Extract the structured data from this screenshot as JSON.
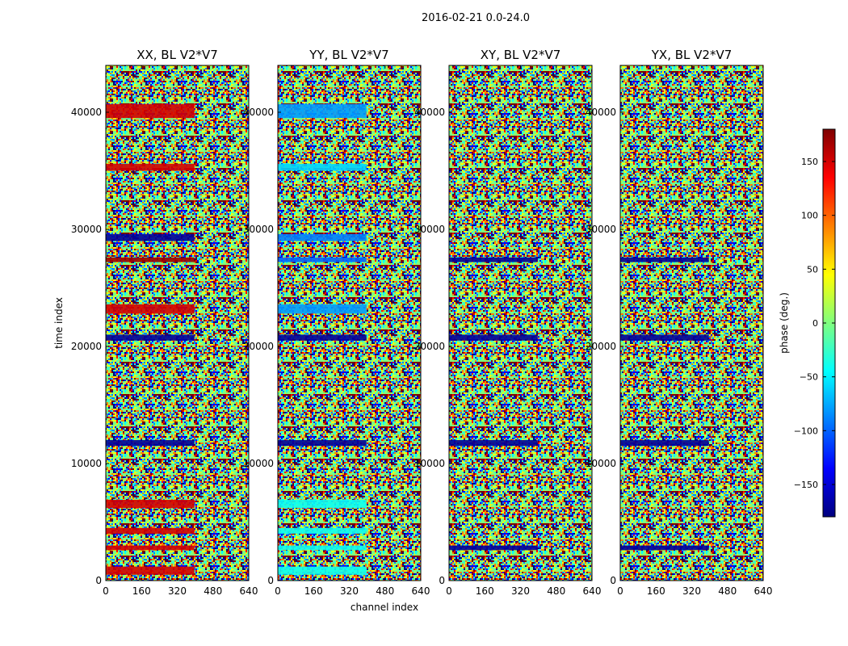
{
  "suptitle": "2016-02-21 0.0-24.0",
  "chart_data": {
    "type": "heatmap",
    "xlabel": "channel index",
    "ylabel": "time index",
    "xlim": [
      0,
      640
    ],
    "ylim": [
      0,
      44000
    ],
    "xticks": [
      0,
      160,
      320,
      480,
      640
    ],
    "yticks": [
      0,
      10000,
      20000,
      30000,
      40000
    ],
    "colorbar": {
      "label": "phase (deg.)",
      "range": [
        -180,
        180
      ],
      "ticks": [
        150,
        100,
        50,
        0,
        -50,
        -100,
        -150
      ],
      "tick_labels": [
        "150",
        "100",
        "50",
        "0",
        "−50",
        "−100",
        "−150"
      ],
      "colormap": "jet",
      "colors": [
        "#00007f",
        "#0000ff",
        "#007fff",
        "#00ffff",
        "#7fff7f",
        "#ffff00",
        "#ff7f00",
        "#ff0000",
        "#7f0000"
      ]
    },
    "panels": [
      {
        "title": "XX, BL V2*V7",
        "bands": [
          [
            39500,
            40700,
            150
          ],
          [
            35000,
            35600,
            150
          ],
          [
            29000,
            29600,
            -170
          ],
          [
            27200,
            27600,
            170
          ],
          [
            22800,
            23600,
            150
          ],
          [
            20500,
            21000,
            -170
          ],
          [
            11500,
            12000,
            -170
          ],
          [
            6200,
            6900,
            150
          ],
          [
            4000,
            4500,
            150
          ],
          [
            2600,
            3000,
            150
          ],
          [
            500,
            1200,
            150
          ]
        ]
      },
      {
        "title": "YY, BL V2*V7",
        "bands": [
          [
            39500,
            40700,
            -80
          ],
          [
            35000,
            35600,
            -60
          ],
          [
            29000,
            29600,
            -90
          ],
          [
            27200,
            27600,
            -100
          ],
          [
            22800,
            23600,
            -80
          ],
          [
            20500,
            21000,
            -170
          ],
          [
            11500,
            12000,
            -170
          ],
          [
            6200,
            6900,
            -40
          ],
          [
            4000,
            4500,
            -40
          ],
          [
            2600,
            3000,
            -40
          ],
          [
            500,
            1200,
            -40
          ]
        ]
      },
      {
        "title": "XY, BL V2*V7",
        "bands": [
          [
            27200,
            27600,
            -170
          ],
          [
            20500,
            21000,
            -170
          ],
          [
            11500,
            12000,
            -170
          ],
          [
            2600,
            3000,
            -170
          ]
        ]
      },
      {
        "title": "YX, BL V2*V7",
        "bands": [
          [
            27200,
            27600,
            -170
          ],
          [
            20500,
            21000,
            -170
          ],
          [
            11500,
            12000,
            -170
          ],
          [
            2600,
            3000,
            -170
          ]
        ]
      }
    ]
  }
}
